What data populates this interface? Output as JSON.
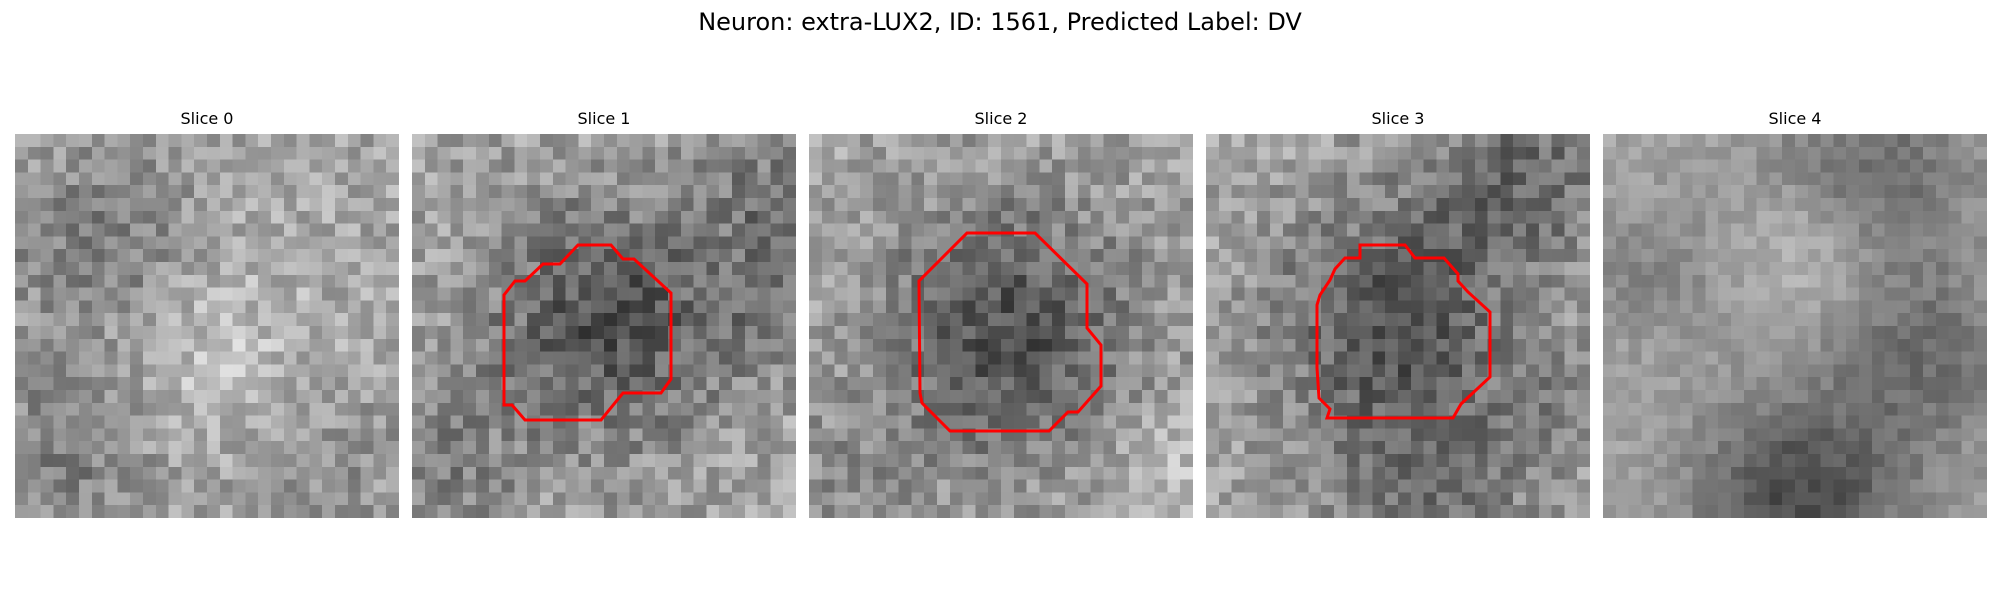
{
  "figure": {
    "title": "Neuron: extra-LUX2, ID: 1561, Predicted Label: DV"
  },
  "colors": {
    "background": "#ffffff",
    "contour": "#ff0000",
    "colormap": "gray"
  },
  "panels": [
    {
      "title": "Slice 0",
      "has_contour": false
    },
    {
      "title": "Slice 1",
      "has_contour": true
    },
    {
      "title": "Slice 2",
      "has_contour": true
    },
    {
      "title": "Slice 3",
      "has_contour": true
    },
    {
      "title": "Slice 4",
      "has_contour": false
    }
  ]
}
